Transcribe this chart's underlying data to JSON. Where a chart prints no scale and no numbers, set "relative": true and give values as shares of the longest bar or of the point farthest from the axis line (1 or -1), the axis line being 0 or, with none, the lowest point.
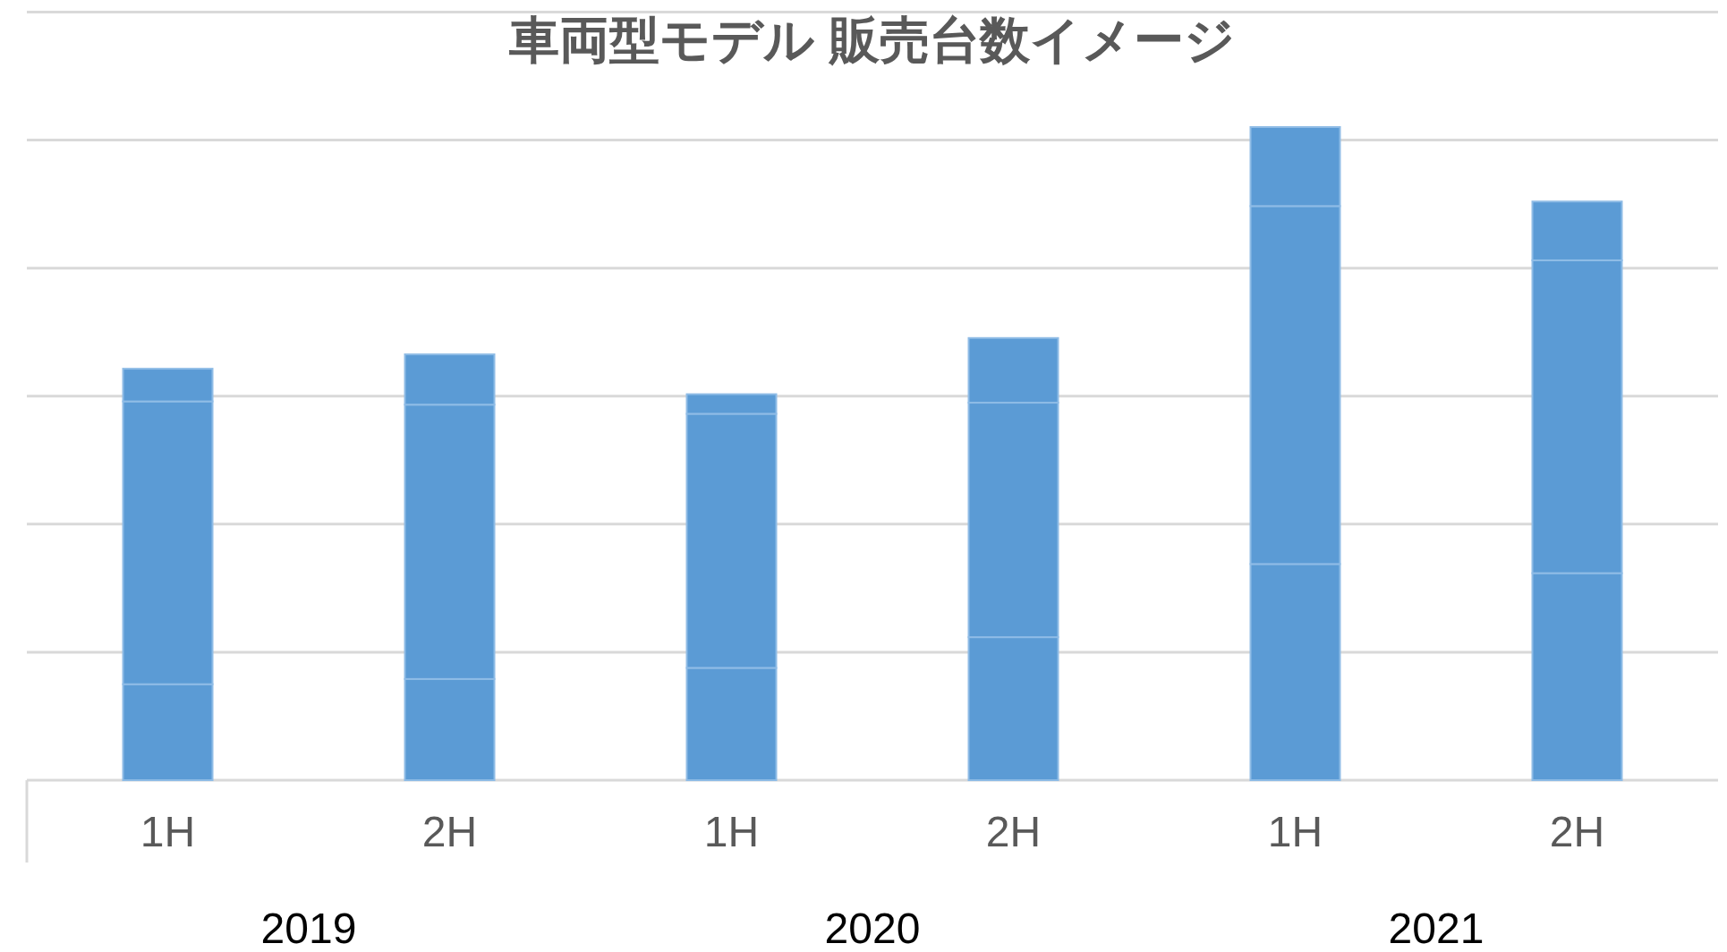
{
  "chart_data": {
    "type": "bar",
    "stacked": true,
    "relative": true,
    "title": "車両型モデル 販売台数イメージ",
    "categories": [
      "1H",
      "2H",
      "1H",
      "2H",
      "1H",
      "2H"
    ],
    "series": [
      {
        "color": "#5b9bd5",
        "values": [
          0.147,
          0.155,
          0.172,
          0.219,
          0.331,
          0.317
        ]
      },
      {
        "color": "#5b9bd5",
        "values": [
          0.433,
          0.42,
          0.389,
          0.359,
          0.548,
          0.479
        ]
      },
      {
        "color": "#5b9bd5",
        "values": [
          0.05,
          0.077,
          0.03,
          0.099,
          0.121,
          0.09
        ]
      }
    ],
    "annotations": [
      "2019",
      "2020",
      "2021"
    ],
    "grid": "y"
  }
}
